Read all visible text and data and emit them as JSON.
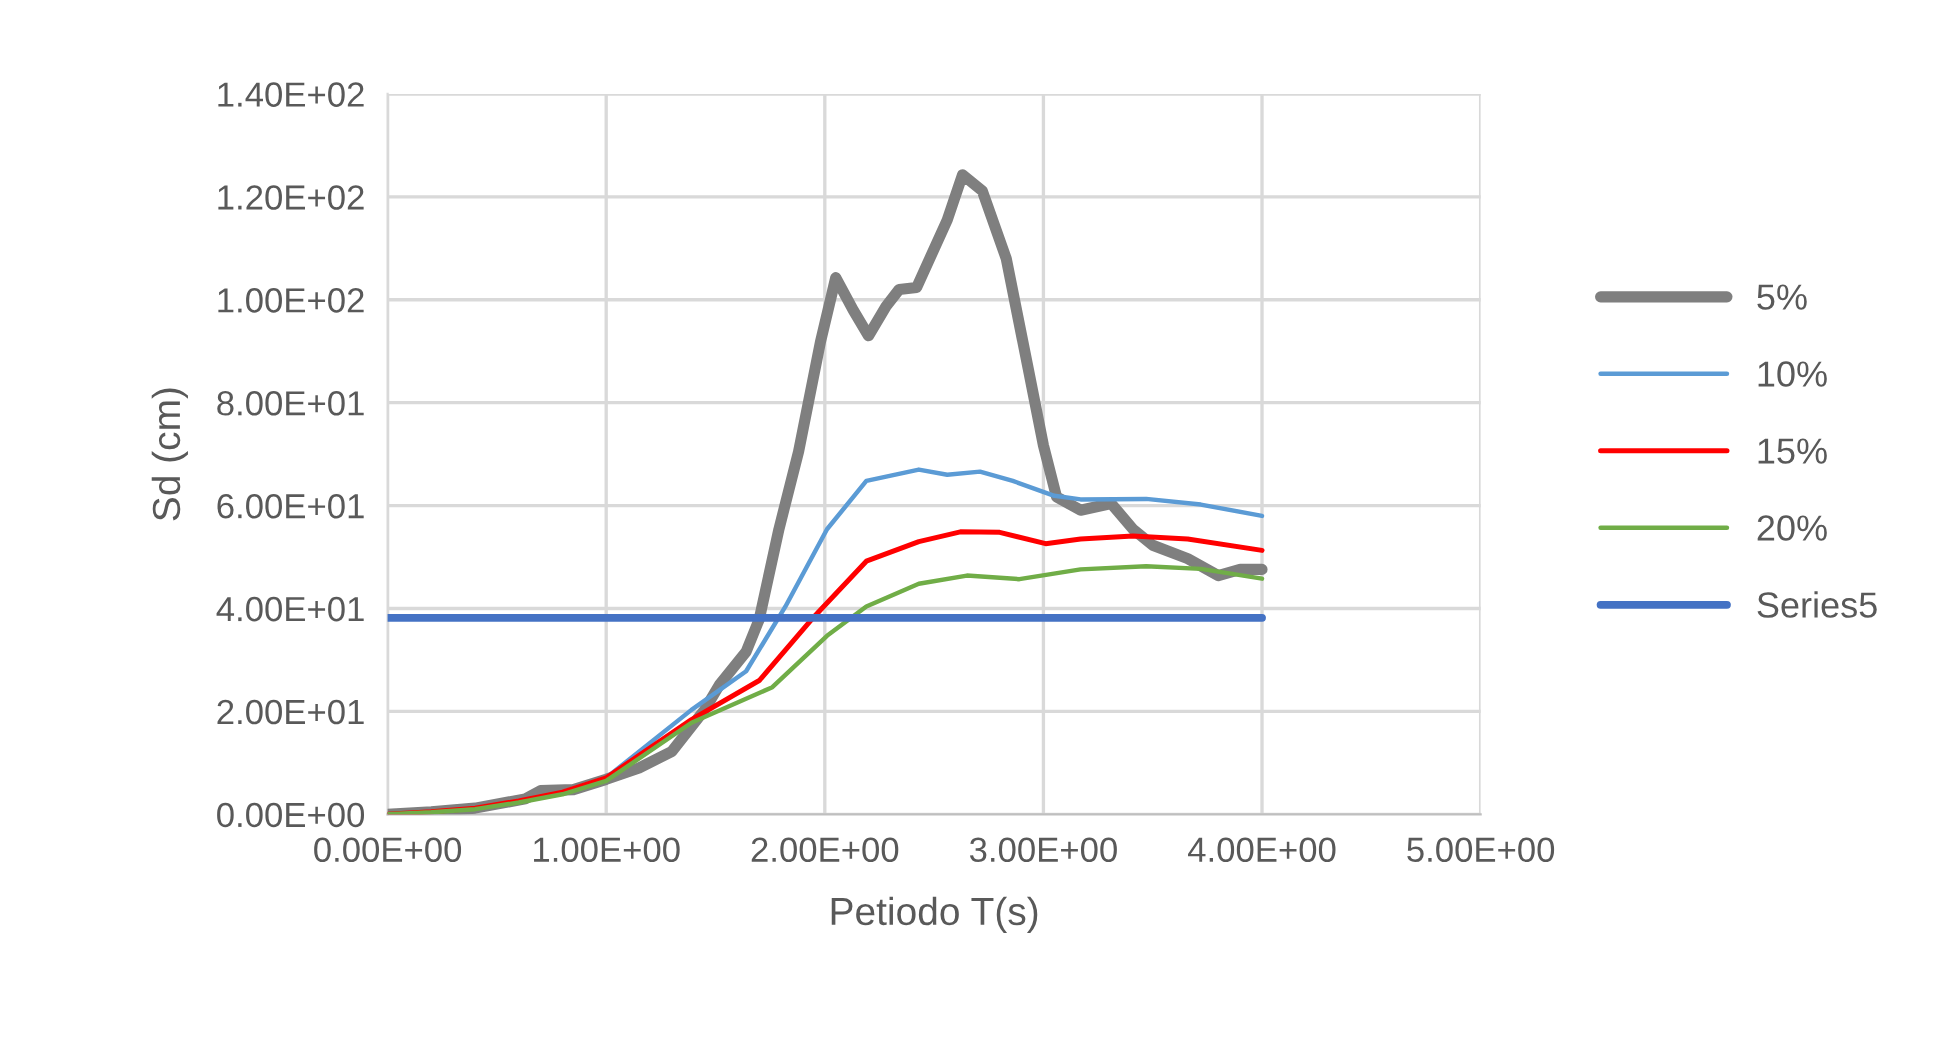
{
  "chart_data": {
    "type": "line",
    "xlabel": "Petiodo T(s)",
    "ylabel": "Sd (cm)",
    "xlim": [
      0,
      5
    ],
    "ylim": [
      0,
      140
    ],
    "xticks": [
      {
        "value": 0,
        "label": "0.00E+00"
      },
      {
        "value": 1,
        "label": "1.00E+00"
      },
      {
        "value": 2,
        "label": "2.00E+00"
      },
      {
        "value": 3,
        "label": "3.00E+00"
      },
      {
        "value": 4,
        "label": "4.00E+00"
      },
      {
        "value": 5,
        "label": "5.00E+00"
      }
    ],
    "yticks": [
      {
        "value": 0,
        "label": "0.00E+00"
      },
      {
        "value": 20,
        "label": "2.00E+01"
      },
      {
        "value": 40,
        "label": "4.00E+01"
      },
      {
        "value": 60,
        "label": "6.00E+01"
      },
      {
        "value": 80,
        "label": "8.00E+01"
      },
      {
        "value": 100,
        "label": "1.00E+02"
      },
      {
        "value": 120,
        "label": "1.20E+02"
      },
      {
        "value": 140,
        "label": "1.40E+02"
      }
    ],
    "grid": true,
    "legend": "right",
    "marker": "none",
    "line_style": "solid",
    "series": [
      {
        "name": "5%",
        "color": "#7f7f7f",
        "x": [
          0,
          0.2,
          0.4,
          0.63,
          0.7,
          0.85,
          1.0,
          1.15,
          1.3,
          1.45,
          1.52,
          1.64,
          1.7,
          1.79,
          1.88,
          1.98,
          2.05,
          2.13,
          2.2,
          2.28,
          2.34,
          2.42,
          2.56,
          2.63,
          2.72,
          2.83,
          2.93,
          3.0,
          3.06,
          3.17,
          3.31,
          3.41,
          3.5,
          3.66,
          3.8,
          3.9,
          4.0
        ],
        "values": [
          0,
          0.5,
          1.2,
          3,
          4.6,
          4.8,
          6.8,
          9,
          12.2,
          20.3,
          25.3,
          31.6,
          37.9,
          55.4,
          70.5,
          91.8,
          104.3,
          98,
          93,
          98.7,
          102,
          102.4,
          115.5,
          124.3,
          121.2,
          108,
          86.7,
          71.7,
          61.7,
          59.1,
          60.4,
          55.4,
          52.3,
          49.7,
          46.4,
          47.6,
          47.6
        ]
      },
      {
        "name": "10%",
        "color": "#5b9bd5",
        "x": [
          0.8,
          1.0,
          1.39,
          1.64,
          1.82,
          2.01,
          2.19,
          2.43,
          2.56,
          2.71,
          2.86,
          3.05,
          3.17,
          3.47,
          3.72,
          4.0
        ],
        "values": [
          4.3,
          7.1,
          20.3,
          27.8,
          40.4,
          55.4,
          64.8,
          67,
          66,
          66.6,
          64.8,
          61.9,
          61.2,
          61.3,
          60.2,
          58
        ]
      },
      {
        "name": "15%",
        "color": "#ff0000",
        "x": [
          0,
          0.2,
          0.4,
          0.6,
          0.8,
          1.0,
          1.39,
          1.7,
          1.94,
          2.19,
          2.43,
          2.62,
          2.8,
          3.01,
          3.17,
          3.41,
          3.66,
          4.0
        ],
        "values": [
          0,
          0.5,
          1.2,
          2.6,
          4.3,
          7.1,
          18.4,
          26,
          37.9,
          49.2,
          53,
          54.9,
          54.8,
          52.6,
          53.5,
          54.1,
          53.5,
          51.3
        ]
      },
      {
        "name": "20%",
        "color": "#70ad47",
        "x": [
          0,
          0.2,
          0.4,
          0.6,
          0.8,
          1.0,
          1.39,
          1.76,
          2.01,
          2.19,
          2.43,
          2.65,
          2.89,
          3.17,
          3.47,
          3.72,
          4.0
        ],
        "values": [
          0,
          0.4,
          1.0,
          2.3,
          3.9,
          6.5,
          17.8,
          24.7,
          34.7,
          40.4,
          44.8,
          46.4,
          45.7,
          47.6,
          48.2,
          47.7,
          45.8
        ]
      },
      {
        "name": "Series5",
        "color": "#4472c4",
        "x": [
          0,
          4.0
        ],
        "values": [
          38.2,
          38.2
        ]
      }
    ]
  }
}
